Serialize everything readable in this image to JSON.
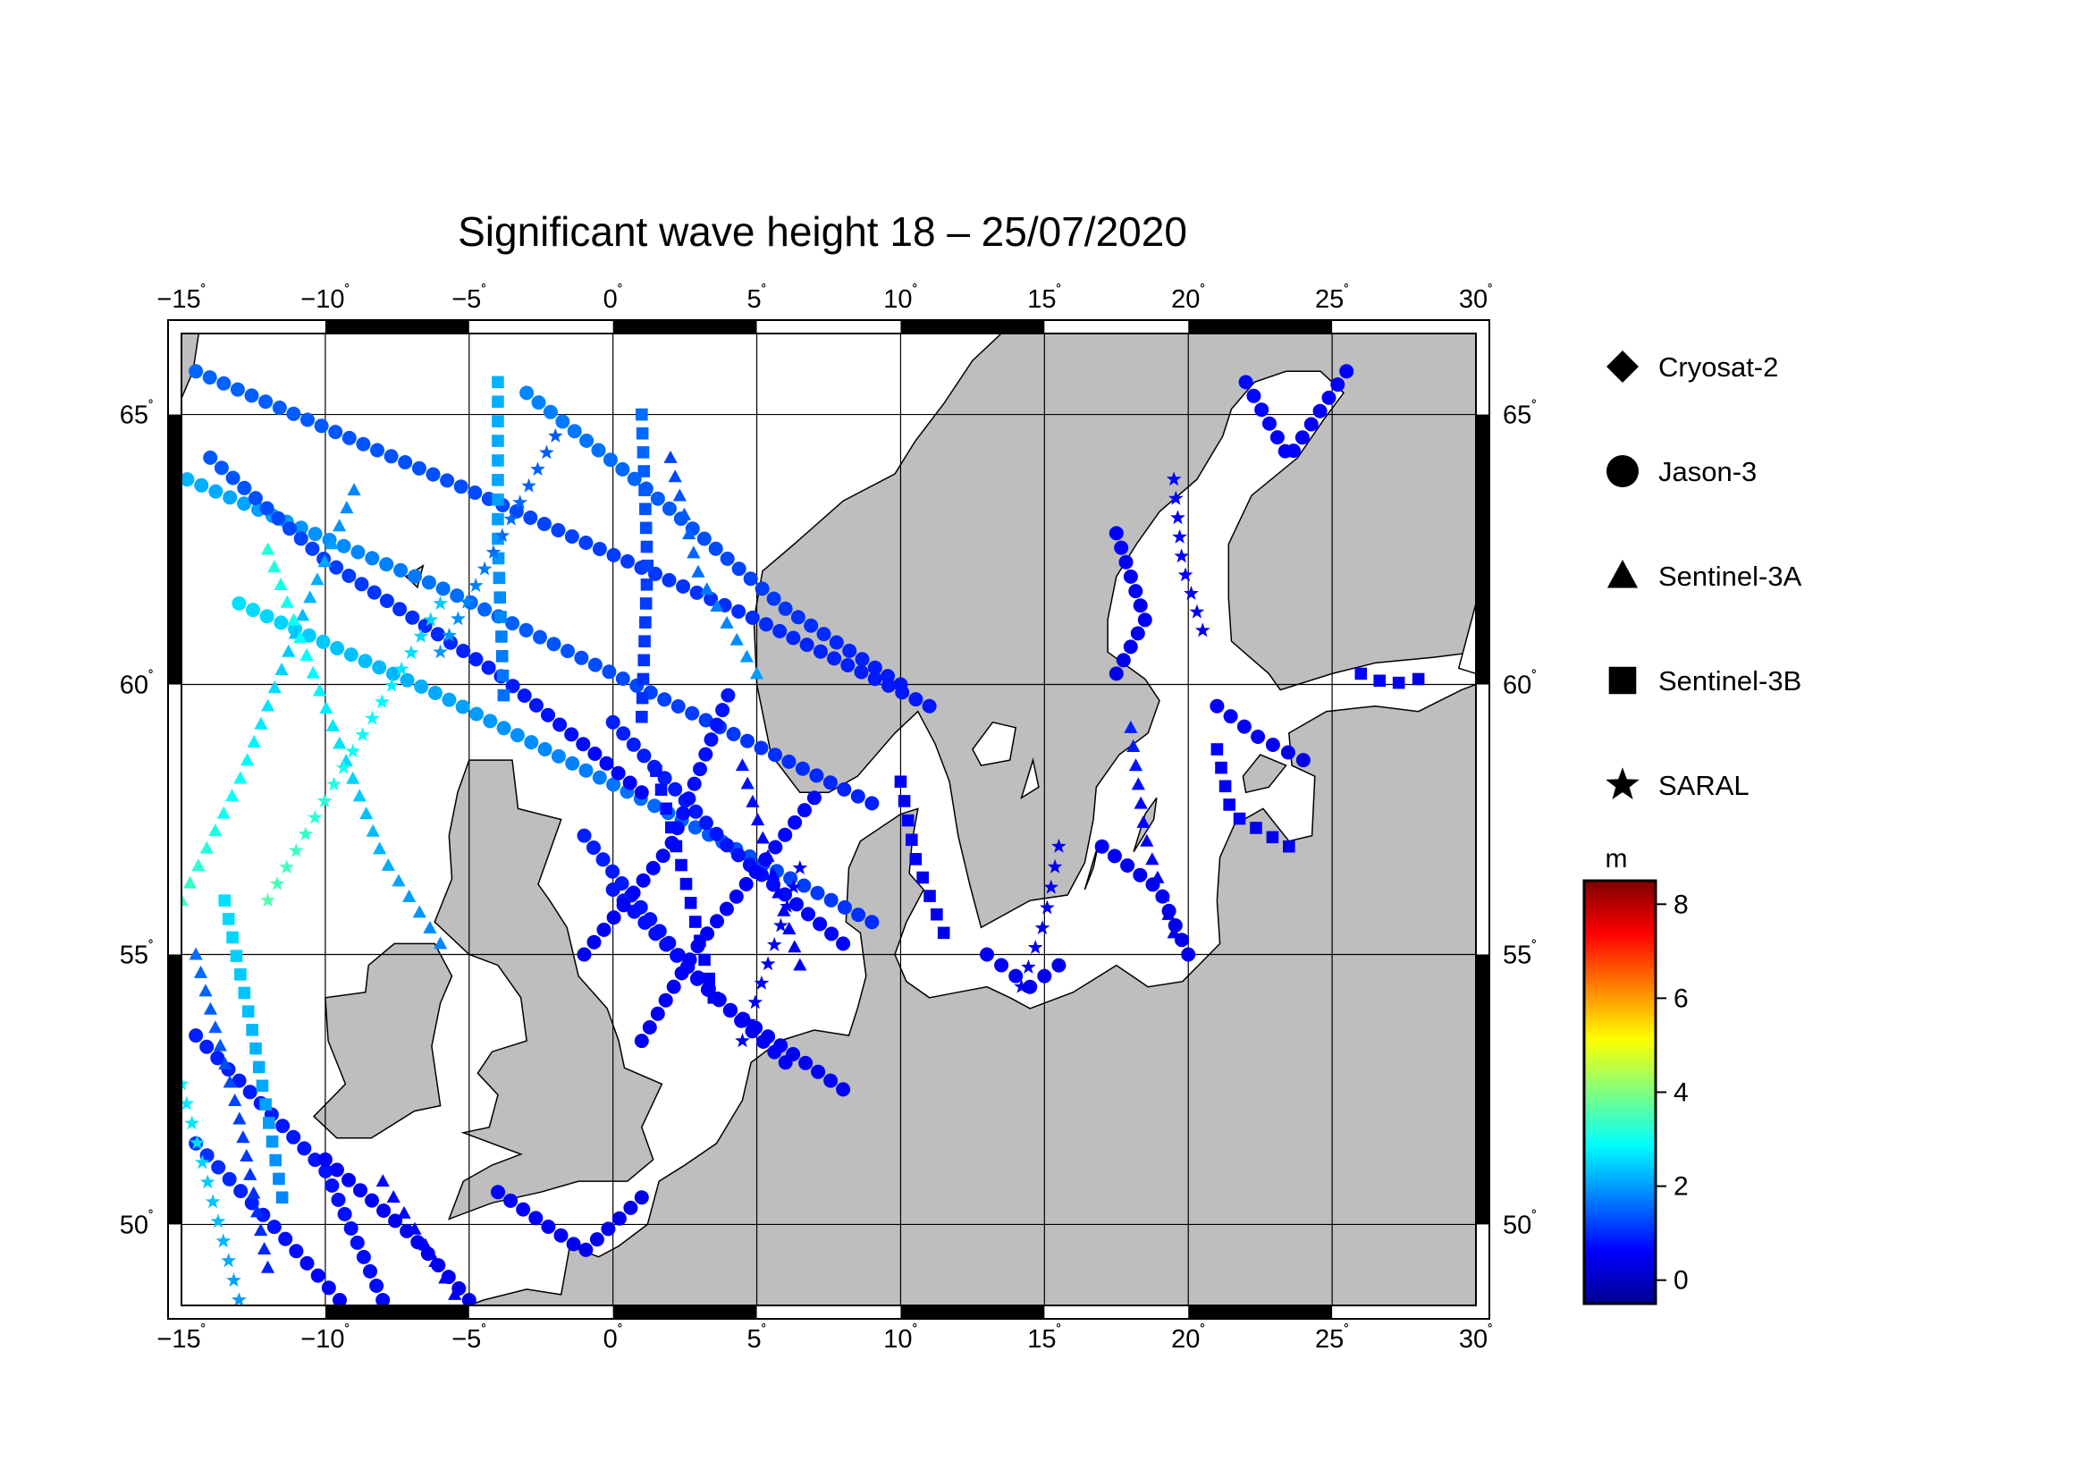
{
  "title": "Significant wave height 18 – 25/07/2020",
  "map": {
    "lon_range": [
      -15,
      30
    ],
    "lat_range": [
      48.5,
      66.5
    ],
    "lon_ticks": [
      {
        "value": -15,
        "label": "−15"
      },
      {
        "value": -10,
        "label": "−10"
      },
      {
        "value": -5,
        "label": "−5"
      },
      {
        "value": 0,
        "label": "0"
      },
      {
        "value": 5,
        "label": "5"
      },
      {
        "value": 10,
        "label": "10"
      },
      {
        "value": 15,
        "label": "15"
      },
      {
        "value": 20,
        "label": "20"
      },
      {
        "value": 25,
        "label": "25"
      },
      {
        "value": 30,
        "label": "30"
      }
    ],
    "lat_ticks": [
      {
        "value": 50,
        "label": "50"
      },
      {
        "value": 55,
        "label": "55"
      },
      {
        "value": 60,
        "label": "60"
      },
      {
        "value": 65,
        "label": "65"
      }
    ],
    "degree_symbol": "˚",
    "colors": {
      "ocean": "#ffffff",
      "land": "#bebebe",
      "grid": "#000000"
    }
  },
  "legend": {
    "items": [
      {
        "label": "Cryosat-2",
        "icon": "diamond"
      },
      {
        "label": "Jason-3",
        "icon": "circle"
      },
      {
        "label": "Sentinel-3A",
        "icon": "triangle"
      },
      {
        "label": "Sentinel-3B",
        "icon": "square"
      },
      {
        "label": "SARAL",
        "icon": "star"
      }
    ]
  },
  "colorbar": {
    "unit": "m",
    "range": [
      -0.5,
      8.5
    ],
    "ticks": [
      {
        "value": 0,
        "label": "0"
      },
      {
        "value": 2,
        "label": "2"
      },
      {
        "value": 4,
        "label": "4"
      },
      {
        "value": 6,
        "label": "6"
      },
      {
        "value": 8,
        "label": "8"
      }
    ],
    "colors": [
      "#00008f",
      "#0000ff",
      "#0080ff",
      "#00ffff",
      "#80ff80",
      "#ffff00",
      "#ff8000",
      "#ff0000",
      "#800000"
    ]
  },
  "tracks": [
    {
      "sat": "Jason-3",
      "swh": [
        1.5,
        1.2,
        0.8
      ],
      "path": [
        [
          -14.5,
          65.8
        ],
        [
          -5,
          63.6
        ],
        [
          5,
          61.2
        ],
        [
          11,
          59.6
        ]
      ]
    },
    {
      "sat": "Jason-3",
      "swh": [
        2.2,
        1.4,
        0.9
      ],
      "path": [
        [
          -14.8,
          63.8
        ],
        [
          -6,
          61.8
        ],
        [
          0,
          60.2
        ],
        [
          9,
          57.8
        ]
      ]
    },
    {
      "sat": "Jason-3",
      "swh": [
        2.6,
        1.8,
        1.0
      ],
      "path": [
        [
          -13,
          61.5
        ],
        [
          -6,
          59.8
        ],
        [
          2,
          57.6
        ],
        [
          9,
          55.6
        ]
      ]
    },
    {
      "sat": "Jason-3",
      "swh": [
        1.4,
        1.0,
        0.6
      ],
      "path": [
        [
          -14,
          64.2
        ],
        [
          -10,
          62.3
        ],
        [
          -4,
          60.2
        ],
        [
          1,
          58.0
        ]
      ]
    },
    {
      "sat": "Jason-3",
      "swh": [
        1.8,
        1.3,
        0.8
      ],
      "path": [
        [
          -3,
          65.4
        ],
        [
          1,
          63.7
        ],
        [
          6,
          61.4
        ],
        [
          10,
          60.0
        ]
      ]
    },
    {
      "sat": "Jason-3",
      "swh": [
        0.9,
        0.7,
        0.5
      ],
      "path": [
        [
          -1,
          57.2
        ],
        [
          3,
          54.5
        ],
        [
          6,
          53.0
        ]
      ]
    },
    {
      "sat": "Jason-3",
      "swh": [
        0.8,
        0.6,
        0.5
      ],
      "path": [
        [
          0,
          56.2
        ],
        [
          4,
          54.0
        ],
        [
          8,
          52.5
        ]
      ]
    },
    {
      "sat": "Jason-3",
      "swh": [
        0.9,
        0.8,
        0.6
      ],
      "path": [
        [
          0,
          59.3
        ],
        [
          4,
          57.0
        ],
        [
          8,
          55.2
        ]
      ]
    },
    {
      "sat": "Jason-3",
      "swh": [
        0.7,
        0.6,
        0.5
      ],
      "path": [
        [
          7,
          57.9
        ],
        [
          3,
          55.2
        ],
        [
          1,
          53.4
        ]
      ]
    },
    {
      "sat": "Jason-3",
      "swh": [
        0.8,
        0.7,
        0.5
      ],
      "path": [
        [
          4,
          59.8
        ],
        [
          2,
          57.0
        ],
        [
          -1,
          55.0
        ]
      ]
    },
    {
      "sat": "Jason-3",
      "swh": [
        0.9,
        0.8,
        0.7
      ],
      "path": [
        [
          -14.5,
          53.5
        ],
        [
          -10,
          51.0
        ],
        [
          -8,
          48.6
        ]
      ]
    },
    {
      "sat": "Jason-3",
      "swh": [
        1.1,
        0.8,
        0.6
      ],
      "path": [
        [
          -14.5,
          51.5
        ],
        [
          -11.5,
          49.8
        ],
        [
          -9.5,
          48.6
        ]
      ]
    },
    {
      "sat": "Jason-3",
      "swh": [
        0.6,
        0.5,
        0.4
      ],
      "path": [
        [
          -10,
          51.2
        ],
        [
          -7,
          49.8
        ],
        [
          -5,
          48.6
        ]
      ]
    },
    {
      "sat": "Jason-3",
      "swh": [
        0.6,
        0.5,
        0.4
      ],
      "path": [
        [
          -4,
          50.6
        ],
        [
          -1,
          49.5
        ],
        [
          1,
          50.5
        ]
      ]
    },
    {
      "sat": "Jason-3",
      "swh": [
        0.7,
        0.6,
        0.5
      ],
      "path": [
        [
          22,
          65.6
        ],
        [
          23.5,
          64.2
        ],
        [
          25.5,
          65.8
        ]
      ]
    },
    {
      "sat": "Jason-3",
      "swh": [
        0.6,
        0.5,
        0.4
      ],
      "path": [
        [
          17.5,
          62.8
        ],
        [
          18.5,
          61.2
        ],
        [
          17.5,
          60.2
        ]
      ]
    },
    {
      "sat": "Jason-3",
      "swh": [
        0.6,
        0.5,
        0.4
      ],
      "path": [
        [
          17,
          57.0
        ],
        [
          19,
          56.2
        ],
        [
          20,
          55.0
        ]
      ]
    },
    {
      "sat": "Jason-3",
      "swh": [
        0.5,
        0.5,
        0.4
      ],
      "path": [
        [
          13,
          55.0
        ],
        [
          14.5,
          54.4
        ],
        [
          15.5,
          54.8
        ]
      ]
    },
    {
      "sat": "Jason-3",
      "swh": [
        0.6,
        0.5,
        0.4
      ],
      "path": [
        [
          21,
          59.6
        ],
        [
          22.5,
          59.0
        ],
        [
          24,
          58.6
        ]
      ]
    },
    {
      "sat": "Sentinel-3A",
      "swh": [
        1.8,
        2.6,
        3.4
      ],
      "path": [
        [
          -9,
          63.6
        ],
        [
          -11,
          61.0
        ],
        [
          -13,
          58.2
        ],
        [
          -15,
          56.0
        ]
      ]
    },
    {
      "sat": "Sentinel-3A",
      "swh": [
        3.2,
        2.6,
        1.8
      ],
      "path": [
        [
          -12,
          62.5
        ],
        [
          -10,
          59.6
        ],
        [
          -8,
          56.8
        ],
        [
          -6,
          55.2
        ]
      ]
    },
    {
      "sat": "Sentinel-3A",
      "swh": [
        1.2,
        1.6,
        2.0
      ],
      "path": [
        [
          2,
          64.2
        ],
        [
          3,
          62.0
        ],
        [
          5,
          60.2
        ]
      ]
    },
    {
      "sat": "Sentinel-3A",
      "swh": [
        0.8,
        0.6,
        0.5
      ],
      "path": [
        [
          4.5,
          58.5
        ],
        [
          5.5,
          56.6
        ],
        [
          6.5,
          54.8
        ]
      ]
    },
    {
      "sat": "Sentinel-3A",
      "swh": [
        0.9,
        0.6,
        0.4
      ],
      "path": [
        [
          18,
          59.2
        ],
        [
          18.5,
          57.2
        ],
        [
          19.5,
          55.4
        ]
      ]
    },
    {
      "sat": "Sentinel-3A",
      "swh": [
        1.6,
        1.2,
        0.9
      ],
      "path": [
        [
          -14.5,
          55.0
        ],
        [
          -13,
          52.0
        ],
        [
          -12,
          49.2
        ]
      ]
    },
    {
      "sat": "Sentinel-3A",
      "swh": [
        0.7,
        0.6,
        0.5
      ],
      "path": [
        [
          -8,
          50.8
        ],
        [
          -6.5,
          49.6
        ],
        [
          -5.5,
          48.7
        ]
      ]
    },
    {
      "sat": "Sentinel-3B",
      "swh": [
        2.2,
        2.0,
        1.6
      ],
      "path": [
        [
          -4,
          65.6
        ],
        [
          -4,
          62.6
        ],
        [
          -3.8,
          59.8
        ]
      ]
    },
    {
      "sat": "Sentinel-3B",
      "swh": [
        1.6,
        1.2,
        1.0
      ],
      "path": [
        [
          1,
          65.0
        ],
        [
          1.2,
          62.2
        ],
        [
          1.0,
          59.4
        ]
      ]
    },
    {
      "sat": "Sentinel-3B",
      "swh": [
        0.8,
        0.6,
        0.5
      ],
      "path": [
        [
          1.5,
          58.4
        ],
        [
          2.5,
          56.4
        ],
        [
          3.5,
          54.2
        ]
      ]
    },
    {
      "sat": "Sentinel-3B",
      "swh": [
        2.6,
        2.2,
        1.8
      ],
      "path": [
        [
          -13.5,
          56.0
        ],
        [
          -12.5,
          53.5
        ],
        [
          -11.5,
          50.5
        ]
      ]
    },
    {
      "sat": "Sentinel-3B",
      "swh": [
        0.6,
        0.5,
        0.4
      ],
      "path": [
        [
          10,
          58.2
        ],
        [
          10.5,
          56.8
        ],
        [
          11.5,
          55.4
        ]
      ]
    },
    {
      "sat": "Sentinel-3B",
      "swh": [
        0.6,
        0.5,
        0.4
      ],
      "path": [
        [
          21,
          58.8
        ],
        [
          21.5,
          57.6
        ],
        [
          23.5,
          57.0
        ]
      ]
    },
    {
      "sat": "Sentinel-3B",
      "swh": [
        0.6,
        0.5,
        0.4
      ],
      "path": [
        [
          26,
          60.2
        ],
        [
          27,
          60.0
        ],
        [
          28,
          60.1
        ]
      ]
    },
    {
      "sat": "SARAL",
      "swh": [
        2.4,
        3.0,
        3.6
      ],
      "path": [
        [
          -6,
          61.5
        ],
        [
          -9,
          58.8
        ],
        [
          -12,
          56.0
        ]
      ]
    },
    {
      "sat": "SARAL",
      "swh": [
        1.4,
        1.6,
        2.0
      ],
      "path": [
        [
          -2,
          64.6
        ],
        [
          -4,
          62.6
        ],
        [
          -6,
          60.6
        ]
      ]
    },
    {
      "sat": "SARAL",
      "swh": [
        0.6,
        0.5,
        0.5
      ],
      "path": [
        [
          6.5,
          56.6
        ],
        [
          5.5,
          55.0
        ],
        [
          4.5,
          53.4
        ]
      ]
    },
    {
      "sat": "SARAL",
      "swh": [
        2.8,
        2.4,
        2.0
      ],
      "path": [
        [
          -15,
          52.6
        ],
        [
          -14,
          50.6
        ],
        [
          -13,
          48.6
        ]
      ]
    },
    {
      "sat": "SARAL",
      "swh": [
        0.5,
        0.5,
        0.4
      ],
      "path": [
        [
          15.5,
          57.0
        ],
        [
          15.0,
          55.6
        ],
        [
          14.2,
          54.4
        ]
      ]
    },
    {
      "sat": "SARAL",
      "swh": [
        0.7,
        0.6,
        0.5
      ],
      "path": [
        [
          19.5,
          63.8
        ],
        [
          19.8,
          62.2
        ],
        [
          20.5,
          61.0
        ]
      ]
    }
  ]
}
